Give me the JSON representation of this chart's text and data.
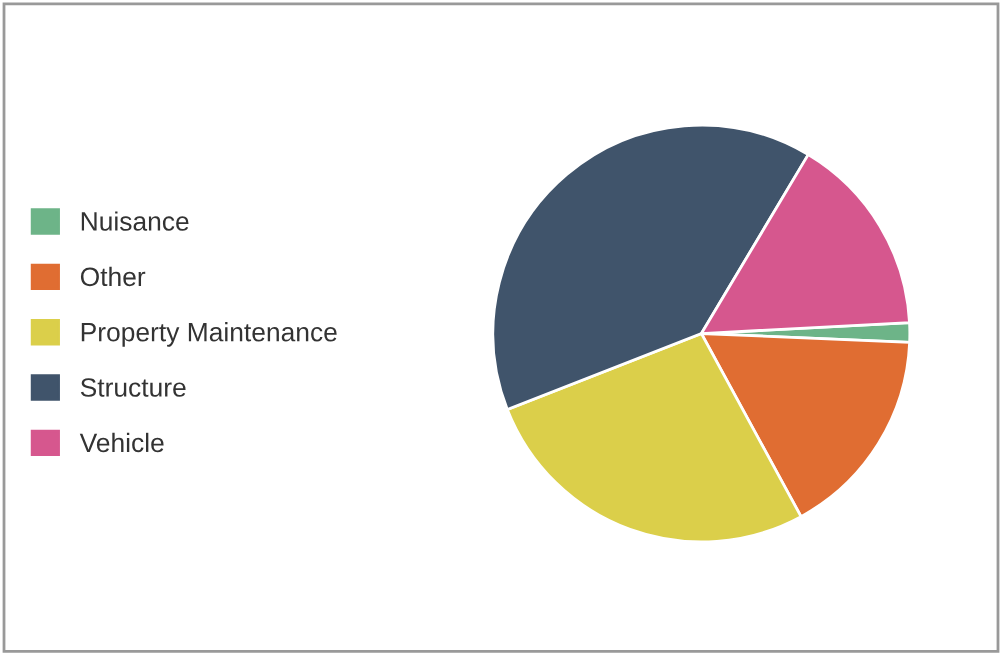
{
  "chart_data": {
    "type": "pie",
    "categories": [
      "Nuisance",
      "Other",
      "Property Maintenance",
      "Structure",
      "Vehicle"
    ],
    "values": [
      1.5,
      16.4,
      27,
      39.5,
      15.6
    ],
    "colors": [
      "#6db488",
      "#e06d32",
      "#dbcf4a",
      "#40546b",
      "#d6578e"
    ],
    "legend": "left"
  }
}
